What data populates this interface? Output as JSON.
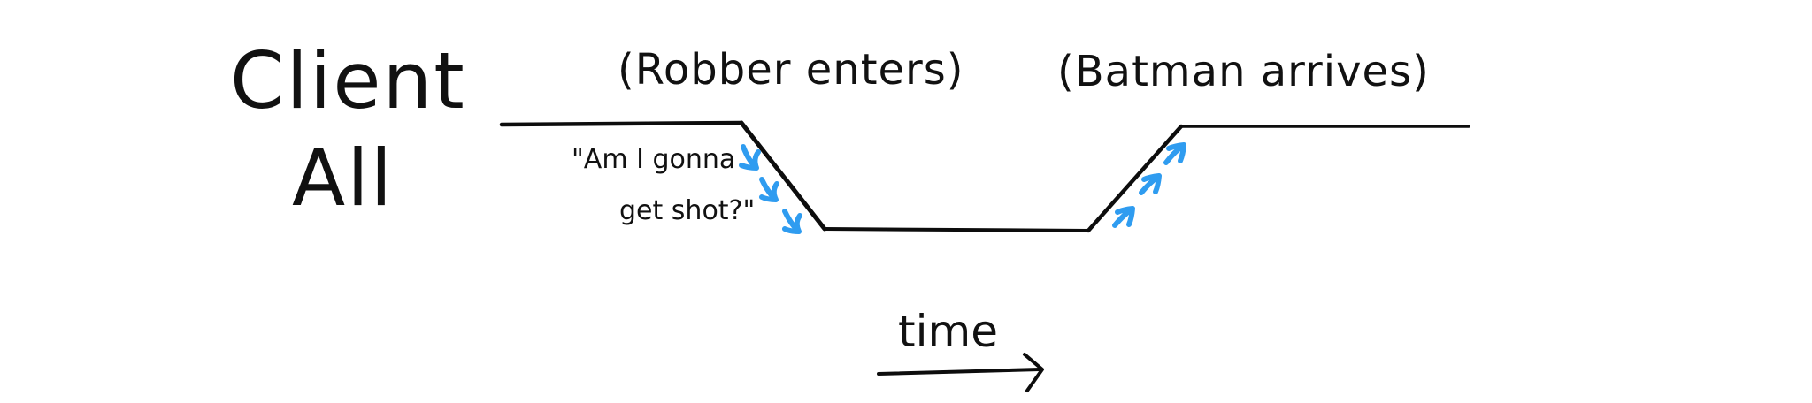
{
  "y_axis_title": {
    "line1": "Client",
    "line2": "All"
  },
  "events": {
    "robber": "(Robber enters)",
    "batman": "(Batman arrives)"
  },
  "quote": {
    "line1": "\"Am I gonna",
    "line2": "get shot?\""
  },
  "x_axis_label": "time",
  "colors": {
    "line": "#0d0d0d",
    "drop_arrows": "#2f9cf0",
    "rise_arrows": "#2f9cf0",
    "background": "#ffffff"
  }
}
